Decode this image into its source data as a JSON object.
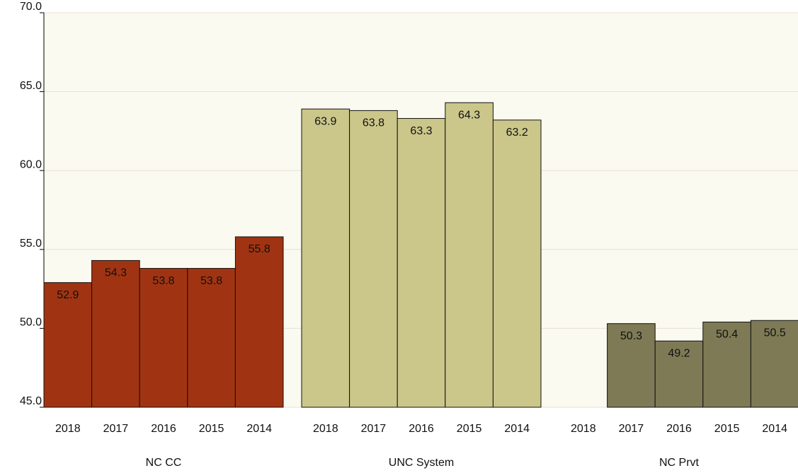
{
  "chart_data": {
    "type": "bar",
    "categories": [
      "2018",
      "2017",
      "2016",
      "2015",
      "2014"
    ],
    "series": [
      {
        "name": "NC CC",
        "color": "#a03412",
        "values": [
          52.9,
          54.3,
          53.8,
          53.8,
          55.8
        ]
      },
      {
        "name": "UNC System",
        "color": "#cbc68a",
        "values": [
          63.9,
          63.8,
          63.3,
          64.3,
          63.2
        ]
      },
      {
        "name": "NC Prvt",
        "color": "#7d7a55",
        "values": [
          null,
          50.3,
          49.2,
          50.4,
          50.5
        ]
      }
    ],
    "ylim": [
      45,
      70
    ],
    "yticks": [
      {
        "value": 45,
        "label": "45.0"
      },
      {
        "value": 50,
        "label": "50.0"
      },
      {
        "value": 55,
        "label": "55.0"
      },
      {
        "value": 60,
        "label": "60.0"
      },
      {
        "value": 65,
        "label": "65.0"
      },
      {
        "value": 70,
        "label": "70.0"
      }
    ],
    "grid": true
  }
}
